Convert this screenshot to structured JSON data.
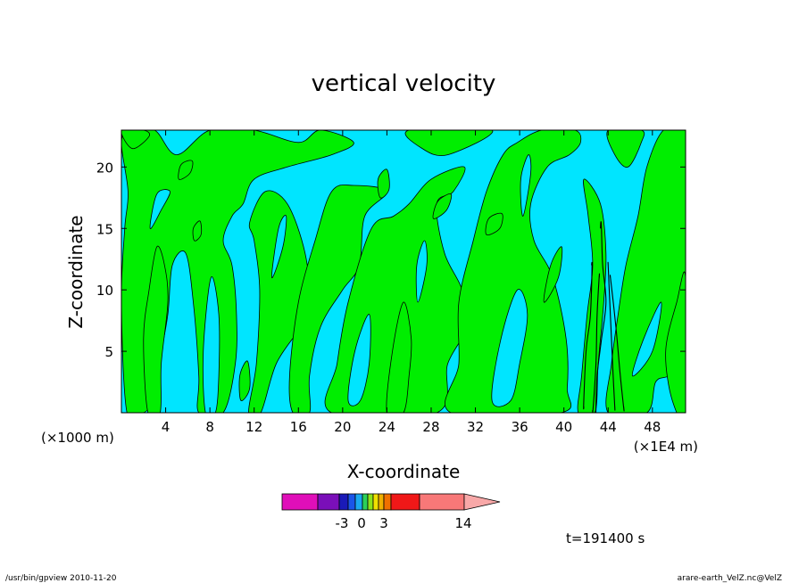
{
  "chart_data": {
    "type": "heatmap",
    "title": "vertical velocity",
    "xlabel": "X-coordinate",
    "ylabel": "Z-coordinate",
    "x_unit_left": "(×1000 m)",
    "x_unit_right": "(×1E4 m)",
    "x_ticks": [
      4,
      8,
      12,
      16,
      20,
      24,
      28,
      32,
      36,
      40,
      44,
      48
    ],
    "y_ticks": [
      5,
      10,
      15,
      20
    ],
    "xlim": [
      0,
      51
    ],
    "ylim": [
      0,
      23
    ],
    "grid": false,
    "time_label": "t=191400 s",
    "colors": {
      "negative_region": "#00e5ff",
      "positive_region": "#00ee00",
      "contour_line": "#000000"
    },
    "colorbar": {
      "segments": [
        "#e00fb9",
        "#7a0fb9",
        "#1a1ab8",
        "#1a55e8",
        "#1aa8f0",
        "#2ad05a",
        "#8de21a",
        "#f0e000",
        "#f0b000",
        "#f07000",
        "#f01818",
        "#f87878"
      ],
      "extend_color": "#f8a8a8",
      "labels": [
        "-3",
        "0",
        "3",
        "14"
      ]
    }
  },
  "footer": {
    "left": "/usr/bin/gpview   2010-11-20",
    "right": "arare-earth_VelZ.nc@VelZ"
  }
}
